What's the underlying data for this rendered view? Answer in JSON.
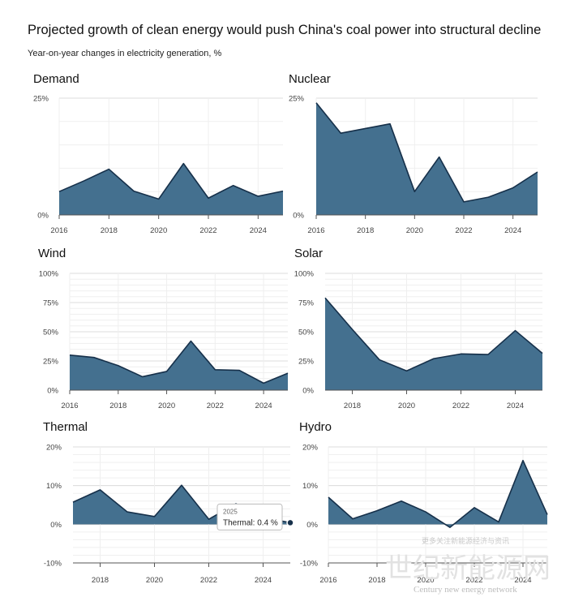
{
  "header": {
    "title": "Projected growth of clean energy would push China's coal power into structural decline",
    "subtitle": "Year-on-year changes in electricity generation, %"
  },
  "colors": {
    "fill": "#44708f",
    "stroke": "#16304a",
    "grid": "#dcdcdc",
    "axis": "#555555"
  },
  "chart_data": [
    {
      "type": "area",
      "title": "Demand",
      "x": [
        2016,
        2017,
        2018,
        2019,
        2020,
        2021,
        2022,
        2023,
        2024,
        2025
      ],
      "values": [
        5.0,
        7.3,
        9.8,
        5.1,
        3.4,
        11.0,
        3.6,
        6.3,
        4.0,
        5.1
      ],
      "ylim": [
        0,
        25
      ],
      "yticks": [
        0,
        25
      ],
      "yticklabels": [
        "0%",
        "25%"
      ],
      "xticks": [
        2016,
        2018,
        2020,
        2022,
        2024
      ],
      "xlim": [
        2016,
        2025
      ]
    },
    {
      "type": "area",
      "title": "Nuclear",
      "x": [
        2016,
        2017,
        2018,
        2019,
        2020,
        2021,
        2022,
        2023,
        2024,
        2025
      ],
      "values": [
        24.0,
        17.5,
        18.5,
        19.5,
        5.0,
        12.4,
        2.8,
        3.8,
        5.8,
        9.2
      ],
      "ylim": [
        0,
        25
      ],
      "yticks": [
        0,
        25
      ],
      "yticklabels": [
        "0%",
        "25%"
      ],
      "xticks": [
        2016,
        2018,
        2020,
        2022,
        2024
      ],
      "xlim": [
        2016,
        2025
      ]
    },
    {
      "type": "area",
      "title": "Wind",
      "x": [
        2016,
        2017,
        2018,
        2019,
        2020,
        2021,
        2022,
        2023,
        2024,
        2025
      ],
      "values": [
        30,
        28,
        21,
        11.5,
        16,
        42,
        17.5,
        17,
        6,
        14.5
      ],
      "ylim": [
        0,
        100
      ],
      "yticks": [
        0,
        25,
        50,
        75,
        100
      ],
      "yticklabels": [
        "0%",
        "25%",
        "50%",
        "75%",
        "100%"
      ],
      "xticks": [
        2016,
        2018,
        2020,
        2022,
        2024
      ],
      "xlim": [
        2016,
        2025
      ]
    },
    {
      "type": "area",
      "title": "Solar",
      "x": [
        2017,
        2018,
        2019,
        2020,
        2021,
        2022,
        2023,
        2024,
        2025
      ],
      "values": [
        79,
        52,
        26,
        16.5,
        27,
        31,
        30.5,
        51,
        31.5
      ],
      "ylim": [
        0,
        100
      ],
      "yticks": [
        0,
        25,
        50,
        75,
        100
      ],
      "yticklabels": [
        "0%",
        "25%",
        "50%",
        "75%",
        "100%"
      ],
      "xticks": [
        2018,
        2020,
        2022,
        2024
      ],
      "xlim": [
        2017,
        2025
      ]
    },
    {
      "type": "area",
      "title": "Thermal",
      "x": [
        2017,
        2018,
        2019,
        2020,
        2021,
        2022,
        2023,
        2024,
        2025
      ],
      "values": [
        5.7,
        8.9,
        3.2,
        2.0,
        10.1,
        1.3,
        5.3,
        1.8,
        0.4
      ],
      "ylim": [
        -10,
        20
      ],
      "yticks": [
        -10,
        0,
        10,
        20
      ],
      "yticklabels": [
        "-10%",
        "0%",
        "10%",
        "20%"
      ],
      "xticks": [
        2018,
        2020,
        2022,
        2024
      ],
      "xlim": [
        2017,
        2025
      ],
      "tooltip": {
        "year": "2025",
        "text": "Thermal: 0.4 %"
      }
    },
    {
      "type": "area",
      "title": "Hydro",
      "x": [
        2016,
        2017,
        2018,
        2019,
        2020,
        2021,
        2022,
        2023,
        2024,
        2025
      ],
      "values": [
        7.0,
        1.4,
        3.5,
        6.0,
        3.2,
        -0.8,
        4.3,
        0.6,
        16.5,
        2.5
      ],
      "ylim": [
        -10,
        20
      ],
      "yticks": [
        -10,
        0,
        10,
        20
      ],
      "yticklabels": [
        "-10%",
        "0%",
        "10%",
        "20%"
      ],
      "xticks": [
        2016,
        2018,
        2020,
        2022,
        2024
      ],
      "xlim": [
        2016,
        2025
      ]
    }
  ],
  "watermark": {
    "line1": "更多关注新能源经济与资讯",
    "line2": "世纪新能源网",
    "line3": "Century new energy network"
  }
}
